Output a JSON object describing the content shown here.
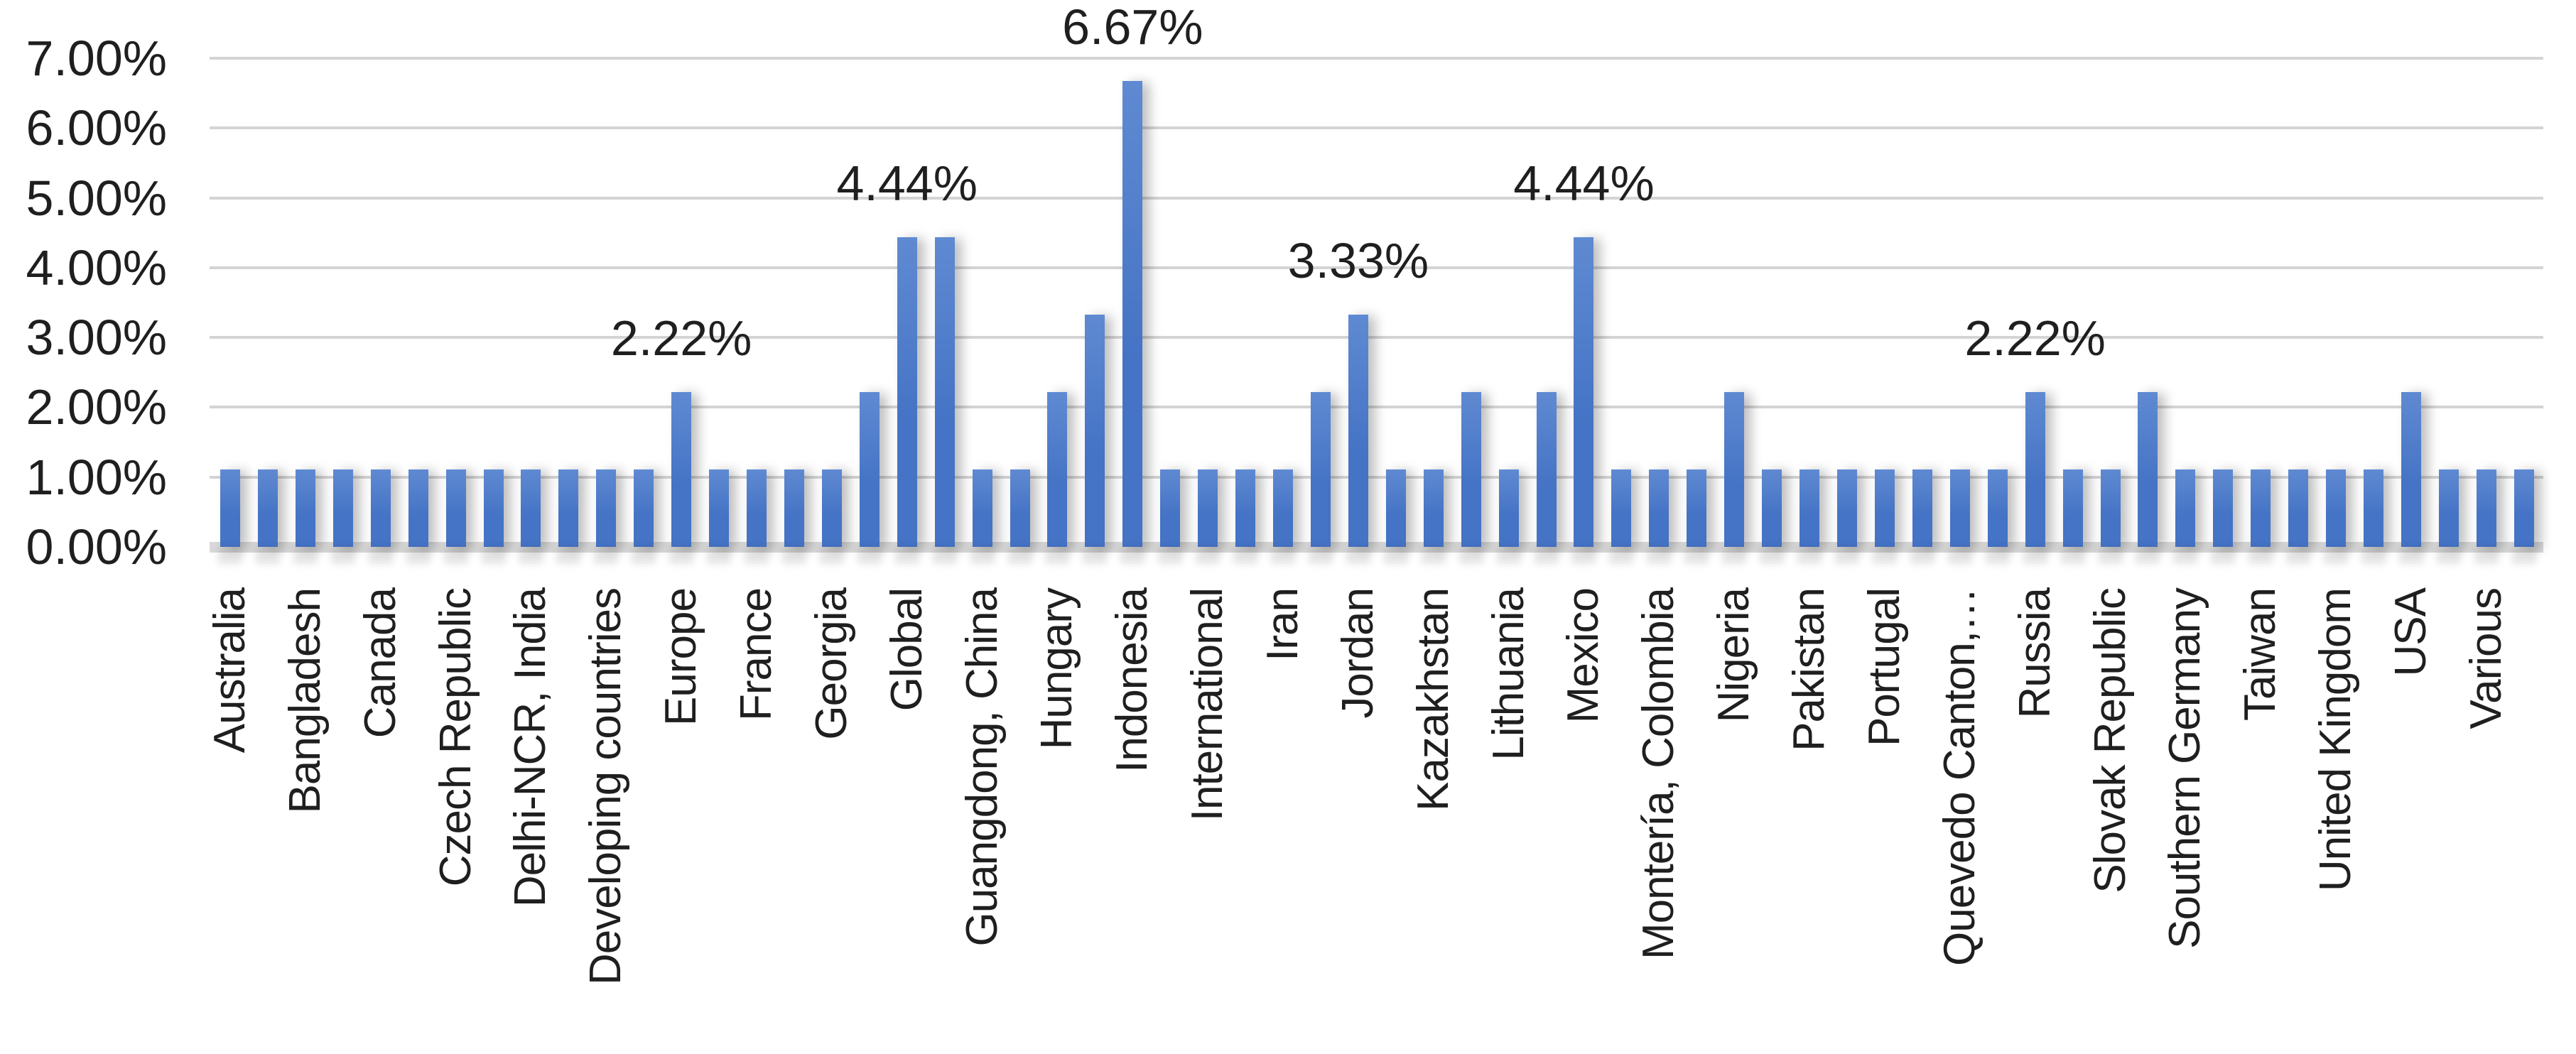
{
  "chart_data": {
    "type": "bar",
    "title": "",
    "xlabel": "",
    "ylabel": "",
    "legend": "none",
    "grid": true,
    "data_label_position": "outside-end",
    "x_label_rotation_deg": 90,
    "y_axis": {
      "min": 0,
      "max": 7,
      "unit": "%",
      "tick_step": 1,
      "tick_labels": [
        "0.00%",
        "1.00%",
        "2.00%",
        "3.00%",
        "4.00%",
        "5.00%",
        "6.00%",
        "7.00%"
      ]
    },
    "bars": [
      {
        "label": "Australia",
        "value": 1.11
      },
      {
        "label": "",
        "value": 1.11
      },
      {
        "label": "Bangladesh",
        "value": 1.11
      },
      {
        "label": "",
        "value": 1.11
      },
      {
        "label": "Canada",
        "value": 1.11
      },
      {
        "label": "",
        "value": 1.11
      },
      {
        "label": "Czech Republic",
        "value": 1.11
      },
      {
        "label": "",
        "value": 1.11
      },
      {
        "label": "Delhi-NCR, India",
        "value": 1.11
      },
      {
        "label": "",
        "value": 1.11
      },
      {
        "label": "Developing countries",
        "value": 1.11
      },
      {
        "label": "",
        "value": 1.11
      },
      {
        "label": "Europe",
        "value": 2.22,
        "data_label": "2.22%"
      },
      {
        "label": "",
        "value": 1.11
      },
      {
        "label": "France",
        "value": 1.11
      },
      {
        "label": "",
        "value": 1.11
      },
      {
        "label": "Georgia",
        "value": 1.11
      },
      {
        "label": "",
        "value": 2.22
      },
      {
        "label": "Global",
        "value": 4.44,
        "data_label": "4.44%"
      },
      {
        "label": "",
        "value": 4.44
      },
      {
        "label": "Guangdong, China",
        "value": 1.11
      },
      {
        "label": "",
        "value": 1.11
      },
      {
        "label": "Hungary",
        "value": 2.22
      },
      {
        "label": "",
        "value": 3.33
      },
      {
        "label": "Indonesia",
        "value": 6.67,
        "data_label": "6.67%"
      },
      {
        "label": "",
        "value": 1.11
      },
      {
        "label": "International",
        "value": 1.11
      },
      {
        "label": "",
        "value": 1.11
      },
      {
        "label": "Iran",
        "value": 1.11
      },
      {
        "label": "",
        "value": 2.22
      },
      {
        "label": "Jordan",
        "value": 3.33,
        "data_label": "3.33%"
      },
      {
        "label": "",
        "value": 1.11
      },
      {
        "label": "Kazakhstan",
        "value": 1.11
      },
      {
        "label": "",
        "value": 2.22
      },
      {
        "label": "Lithuania",
        "value": 1.11
      },
      {
        "label": "",
        "value": 2.22
      },
      {
        "label": "Mexico",
        "value": 4.44,
        "data_label": "4.44%"
      },
      {
        "label": "",
        "value": 1.11
      },
      {
        "label": "Montería, Colombia",
        "value": 1.11
      },
      {
        "label": "",
        "value": 1.11
      },
      {
        "label": "Nigeria",
        "value": 2.22
      },
      {
        "label": "",
        "value": 1.11
      },
      {
        "label": "Pakistan",
        "value": 1.11
      },
      {
        "label": "",
        "value": 1.11
      },
      {
        "label": "Portugal",
        "value": 1.11
      },
      {
        "label": "",
        "value": 1.11
      },
      {
        "label": "Quevedo Canton,…",
        "value": 1.11
      },
      {
        "label": "",
        "value": 1.11
      },
      {
        "label": "Russia",
        "value": 2.22,
        "data_label": "2.22%"
      },
      {
        "label": "",
        "value": 1.11
      },
      {
        "label": "Slovak Republic",
        "value": 1.11
      },
      {
        "label": "",
        "value": 2.22
      },
      {
        "label": "Southern Germany",
        "value": 1.11
      },
      {
        "label": "",
        "value": 1.11
      },
      {
        "label": "Taiwan",
        "value": 1.11
      },
      {
        "label": "",
        "value": 1.11
      },
      {
        "label": "United Kingdom",
        "value": 1.11
      },
      {
        "label": "",
        "value": 1.11
      },
      {
        "label": "USA",
        "value": 2.22
      },
      {
        "label": "",
        "value": 1.11
      },
      {
        "label": "Various",
        "value": 1.11
      },
      {
        "label": "",
        "value": 1.11
      }
    ],
    "colors": {
      "bar_fill": "#4573c5",
      "bar_fill_light": "#5f8ad2",
      "gridline": "#d4d4d4",
      "axis_line": "#d9d9d9",
      "text": "#1f1f1f",
      "background": "#ffffff"
    }
  }
}
